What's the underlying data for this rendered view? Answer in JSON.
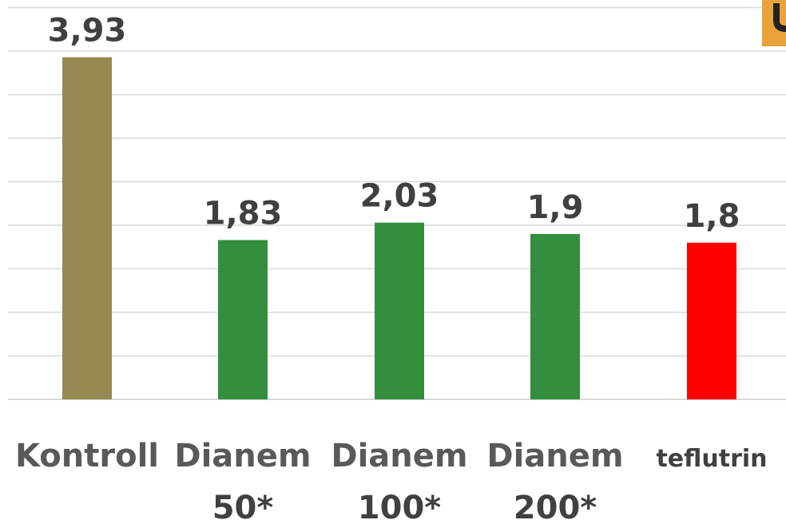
{
  "chart_data": {
    "type": "bar",
    "categories": [
      [
        "Kontroll"
      ],
      [
        "Dianem",
        "50*"
      ],
      [
        "Dianem",
        "100*"
      ],
      [
        "Dianem",
        "200*"
      ],
      [
        "teflutrin"
      ]
    ],
    "values": [
      3.93,
      1.83,
      2.03,
      1.9,
      1.8
    ],
    "value_labels": [
      "3,93",
      "1,83",
      "2,03",
      "1,9",
      "1,8"
    ],
    "colors": [
      "#958a52",
      "#338f3d",
      "#338f3d",
      "#338f3d",
      "#ff0000"
    ],
    "ylim": [
      0,
      4.5
    ],
    "gridline_step": 0.5,
    "grid": true,
    "title": "",
    "xlabel": "",
    "ylabel": ""
  }
}
